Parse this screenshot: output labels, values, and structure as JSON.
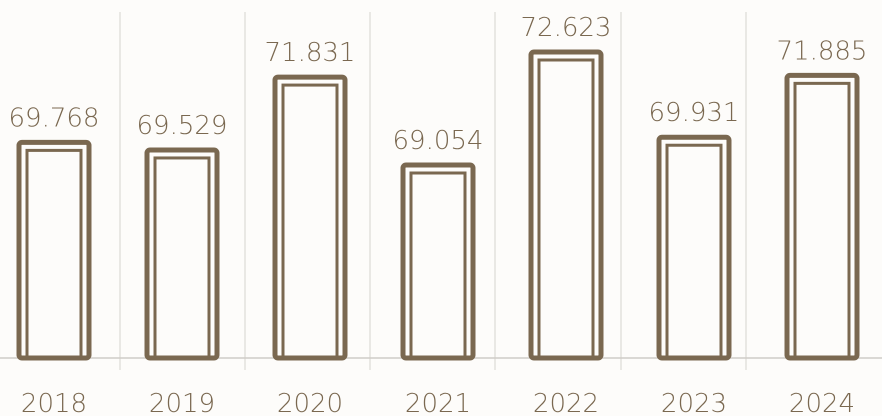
{
  "chart_data": {
    "type": "bar",
    "categories": [
      "2018",
      "2019",
      "2020",
      "2021",
      "2022",
      "2023",
      "2024"
    ],
    "values": [
      69.768,
      69.529,
      71.831,
      69.054,
      72.623,
      69.931,
      71.885
    ],
    "value_labels": [
      "69.768",
      "69.529",
      "71.831",
      "69.054",
      "72.623",
      "69.931",
      "71.885"
    ],
    "title": "",
    "xlabel": "",
    "ylabel": "",
    "grid": "vertical separators",
    "legend": "none",
    "colors": {
      "bar": "#7a6850",
      "grid": "#dcdad6",
      "text": "#7a6850"
    }
  }
}
